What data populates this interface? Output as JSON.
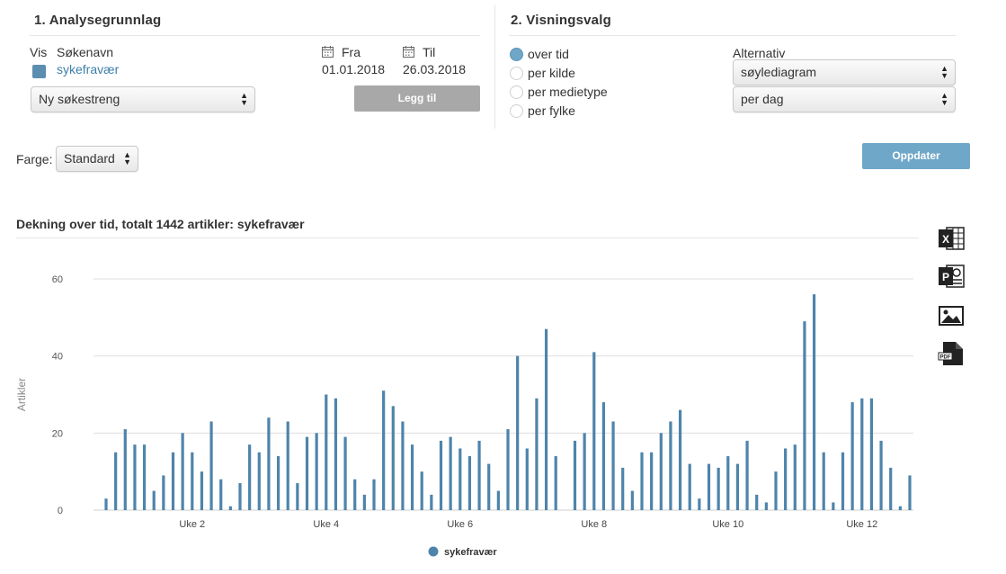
{
  "section1": {
    "title": "1. Analysegrunnlag",
    "col_vis": "Vis",
    "col_sokenavn": "Søkenavn",
    "col_fra": "Fra",
    "col_til": "Til",
    "search_name": "sykefravær",
    "date_from": "01.01.2018",
    "date_to": "26.03.2018",
    "new_search_select": "Ny søkestreng",
    "add_button": "Legg til"
  },
  "section2": {
    "title": "2. Visningsvalg",
    "radios": [
      "over tid",
      "per kilde",
      "per medietype",
      "per fylke"
    ],
    "selected_radio": "over tid",
    "alternativ_label": "Alternativ",
    "chart_type_select": "søylediagram",
    "period_select": "per dag"
  },
  "color": {
    "label": "Farge:",
    "select": "Standard"
  },
  "update_button": "Oppdater",
  "chart_heading": "Dekning over tid, totalt 1442 artikler: sykefravær",
  "export_icons": [
    "excel-icon",
    "powerpoint-icon",
    "image-icon",
    "pdf-icon"
  ],
  "colors": {
    "bar": "#4e84ab",
    "accent": "#6fa7c8",
    "link": "#3d7fa8"
  },
  "chart_data": {
    "type": "bar",
    "ylabel": "Artikler",
    "ylim": [
      0,
      60
    ],
    "yticks": [
      0,
      20,
      40,
      60
    ],
    "xtick_labels": [
      "Uke 2",
      "Uke 4",
      "Uke 6",
      "Uke 8",
      "Uke 10",
      "Uke 12"
    ],
    "xtick_day_index": [
      9,
      23,
      37,
      51,
      65,
      79
    ],
    "series": [
      {
        "name": "sykefravær",
        "values": [
          3,
          15,
          21,
          17,
          17,
          5,
          9,
          15,
          20,
          15,
          10,
          23,
          8,
          1,
          7,
          17,
          15,
          24,
          14,
          23,
          7,
          19,
          20,
          30,
          29,
          19,
          8,
          4,
          8,
          31,
          27,
          23,
          17,
          10,
          4,
          18,
          19,
          16,
          14,
          18,
          12,
          5,
          21,
          40,
          16,
          29,
          47,
          14,
          0,
          18,
          20,
          41,
          28,
          23,
          11,
          5,
          15,
          15,
          20,
          23,
          26,
          12,
          3,
          12,
          11,
          14,
          12,
          18,
          4,
          2,
          10,
          16,
          17,
          49,
          56,
          15,
          2,
          15,
          28,
          29,
          29,
          18,
          11,
          1,
          9
        ]
      }
    ]
  }
}
